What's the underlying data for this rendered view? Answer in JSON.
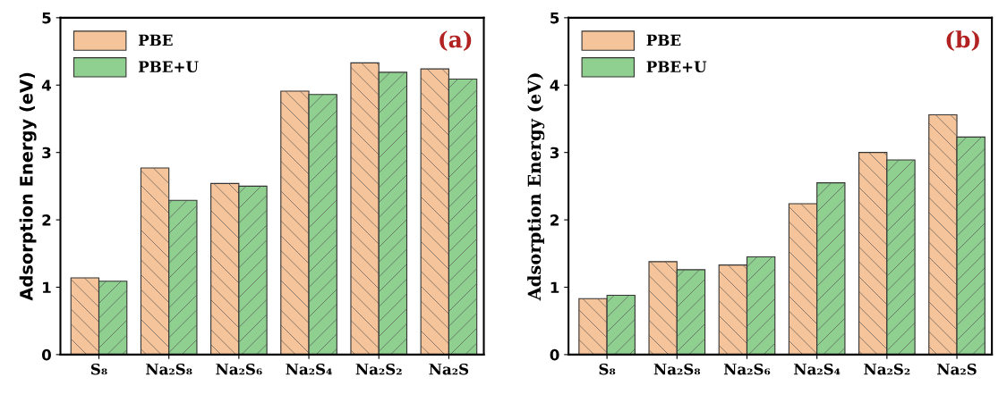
{
  "chart_data": [
    {
      "type": "bar",
      "title": "(a)",
      "ylabel": "Adsorption Energy (eV)",
      "categories": [
        "S₈",
        "Na₂S₈",
        "Na₂S₆",
        "Na₂S₄",
        "Na₂S₂",
        "Na₂S"
      ],
      "ylim": [
        0,
        5
      ],
      "yticks": [
        0,
        1,
        2,
        3,
        4,
        5
      ],
      "legend": "top left",
      "grid": false,
      "series": [
        {
          "name": "PBE",
          "color": "#f5c49a",
          "values": [
            1.14,
            2.77,
            2.54,
            3.91,
            4.33,
            4.24
          ]
        },
        {
          "name": "PBE+U",
          "color": "#8fcf8f",
          "values": [
            1.09,
            2.29,
            2.5,
            3.86,
            4.19,
            4.09
          ]
        }
      ]
    },
    {
      "type": "bar",
      "title": "(b)",
      "ylabel": "Adsorption Energy (eV)",
      "categories": [
        "S₈",
        "Na₂S₈",
        "Na₂S₆",
        "Na₂S₄",
        "Na₂S₂",
        "Na₂S"
      ],
      "ylim": [
        0,
        5
      ],
      "yticks": [
        0,
        1,
        2,
        3,
        4,
        5
      ],
      "legend": "top left",
      "grid": false,
      "series": [
        {
          "name": "PBE",
          "color": "#f5c49a",
          "values": [
            0.83,
            1.38,
            1.33,
            2.24,
            3.0,
            3.56
          ]
        },
        {
          "name": "PBE+U",
          "color": "#8fcf8f",
          "values": [
            0.88,
            1.26,
            1.45,
            2.55,
            2.89,
            3.23
          ]
        }
      ]
    }
  ]
}
